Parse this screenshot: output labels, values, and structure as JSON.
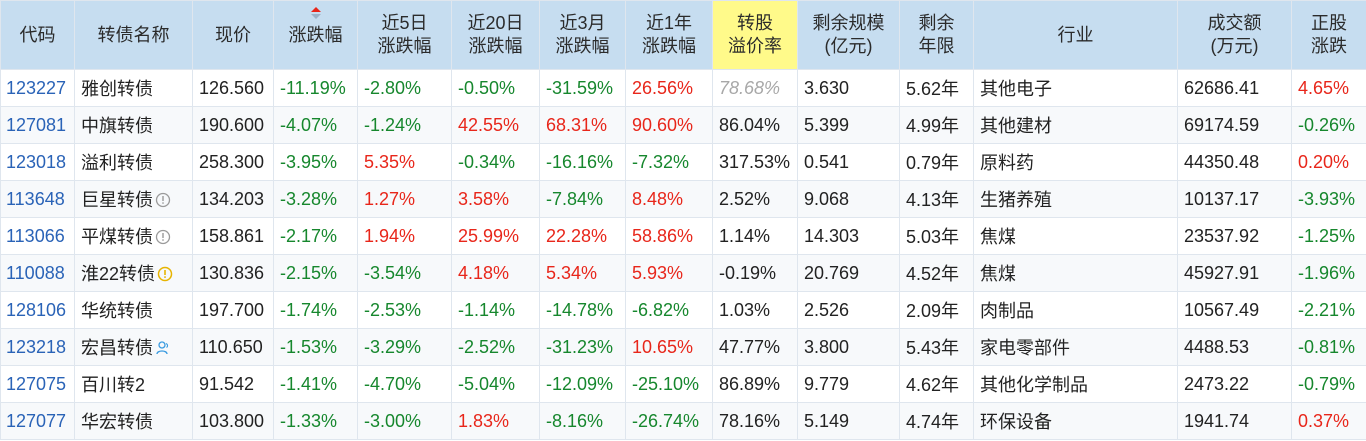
{
  "columns": [
    {
      "key": "code",
      "line1": "代码",
      "line2": ""
    },
    {
      "key": "name",
      "line1": "转债名称",
      "line2": ""
    },
    {
      "key": "price",
      "line1": "现价",
      "line2": ""
    },
    {
      "key": "chg",
      "line1": "涨跌幅",
      "line2": ""
    },
    {
      "key": "chg5d",
      "line1": "近5日",
      "line2": "涨跌幅"
    },
    {
      "key": "chg20d",
      "line1": "近20日",
      "line2": "涨跌幅"
    },
    {
      "key": "chg3m",
      "line1": "近3月",
      "line2": "涨跌幅"
    },
    {
      "key": "chg1y",
      "line1": "近1年",
      "line2": "涨跌幅"
    },
    {
      "key": "premium",
      "line1": "转股",
      "line2": "溢价率"
    },
    {
      "key": "scale",
      "line1": "剩余规模",
      "line2": "(亿元)"
    },
    {
      "key": "years",
      "line1": "剩余",
      "line2": "年限"
    },
    {
      "key": "industry",
      "line1": "行业",
      "line2": ""
    },
    {
      "key": "volume",
      "line1": "成交额",
      "line2": "(万元)"
    },
    {
      "key": "stockchg",
      "line1": "正股",
      "line2": "涨跌"
    }
  ],
  "sorted_column": "chg",
  "sort_direction": "descending",
  "highlighted_column": "premium",
  "colors": {
    "header_bg": "#c6ddf0",
    "highlight_bg": "#fffa8a",
    "up": "#e8261a",
    "down": "#16872d",
    "code": "#2a63b7",
    "muted": "#a8a8a8"
  },
  "rows": [
    {
      "code": "123227",
      "name": "雅创转债",
      "badge": "",
      "price": "126.560",
      "chg": "-11.19%",
      "chg5d": "-2.80%",
      "chg20d": "-0.50%",
      "chg3m": "-31.59%",
      "chg1y": "26.56%",
      "premium": "78.68%",
      "premium_muted": true,
      "scale": "3.630",
      "years": "5.62年",
      "industry": "其他电子",
      "volume": "62686.41",
      "stockchg": "4.65%"
    },
    {
      "code": "127081",
      "name": "中旗转债",
      "badge": "",
      "price": "190.600",
      "chg": "-4.07%",
      "chg5d": "-1.24%",
      "chg20d": "42.55%",
      "chg3m": "68.31%",
      "chg1y": "90.60%",
      "premium": "86.04%",
      "premium_muted": false,
      "scale": "5.399",
      "years": "4.99年",
      "industry": "其他建材",
      "volume": "69174.59",
      "stockchg": "-0.26%"
    },
    {
      "code": "123018",
      "name": "溢利转债",
      "badge": "",
      "price": "258.300",
      "chg": "-3.95%",
      "chg5d": "5.35%",
      "chg20d": "-0.34%",
      "chg3m": "-16.16%",
      "chg1y": "-7.32%",
      "premium": "317.53%",
      "premium_muted": false,
      "scale": "0.541",
      "years": "0.79年",
      "industry": "原料药",
      "volume": "44350.48",
      "stockchg": "0.20%"
    },
    {
      "code": "113648",
      "name": "巨星转债",
      "badge": "info-circle-icon",
      "price": "134.203",
      "chg": "-3.28%",
      "chg5d": "1.27%",
      "chg20d": "3.58%",
      "chg3m": "-7.84%",
      "chg1y": "8.48%",
      "premium": "2.52%",
      "premium_muted": false,
      "scale": "9.068",
      "years": "4.13年",
      "industry": "生猪养殖",
      "volume": "10137.17",
      "stockchg": "-3.93%"
    },
    {
      "code": "113066",
      "name": "平煤转债",
      "badge": "info-circle-icon",
      "price": "158.861",
      "chg": "-2.17%",
      "chg5d": "1.94%",
      "chg20d": "25.99%",
      "chg3m": "22.28%",
      "chg1y": "58.86%",
      "premium": "1.14%",
      "premium_muted": false,
      "scale": "14.303",
      "years": "5.03年",
      "industry": "焦煤",
      "volume": "23537.92",
      "stockchg": "-1.25%"
    },
    {
      "code": "110088",
      "name": "淮22转债",
      "badge": "warning-circle-icon",
      "price": "130.836",
      "chg": "-2.15%",
      "chg5d": "-3.54%",
      "chg20d": "4.18%",
      "chg3m": "5.34%",
      "chg1y": "5.93%",
      "premium": "-0.19%",
      "premium_muted": false,
      "scale": "20.769",
      "years": "4.52年",
      "industry": "焦煤",
      "volume": "45927.91",
      "stockchg": "-1.96%"
    },
    {
      "code": "128106",
      "name": "华统转债",
      "badge": "",
      "price": "197.700",
      "chg": "-1.74%",
      "chg5d": "-2.53%",
      "chg20d": "-1.14%",
      "chg3m": "-14.78%",
      "chg1y": "-6.82%",
      "premium": "1.03%",
      "premium_muted": false,
      "scale": "2.526",
      "years": "2.09年",
      "industry": "肉制品",
      "volume": "10567.49",
      "stockchg": "-2.21%"
    },
    {
      "code": "123218",
      "name": "宏昌转债",
      "badge": "person-icon",
      "price": "110.650",
      "chg": "-1.53%",
      "chg5d": "-3.29%",
      "chg20d": "-2.52%",
      "chg3m": "-31.23%",
      "chg1y": "10.65%",
      "premium": "47.77%",
      "premium_muted": false,
      "scale": "3.800",
      "years": "5.43年",
      "industry": "家电零部件",
      "volume": "4488.53",
      "stockchg": "-0.81%"
    },
    {
      "code": "127075",
      "name": "百川转2",
      "badge": "",
      "price": "91.542",
      "chg": "-1.41%",
      "chg5d": "-4.70%",
      "chg20d": "-5.04%",
      "chg3m": "-12.09%",
      "chg1y": "-25.10%",
      "premium": "86.89%",
      "premium_muted": false,
      "scale": "9.779",
      "years": "4.62年",
      "industry": "其他化学制品",
      "volume": "2473.22",
      "stockchg": "-0.79%"
    },
    {
      "code": "127077",
      "name": "华宏转债",
      "badge": "",
      "price": "103.800",
      "chg": "-1.33%",
      "chg5d": "-3.00%",
      "chg20d": "1.83%",
      "chg3m": "-8.16%",
      "chg1y": "-26.74%",
      "premium": "78.16%",
      "premium_muted": false,
      "scale": "5.149",
      "years": "4.74年",
      "industry": "环保设备",
      "volume": "1941.74",
      "stockchg": "0.37%"
    }
  ]
}
